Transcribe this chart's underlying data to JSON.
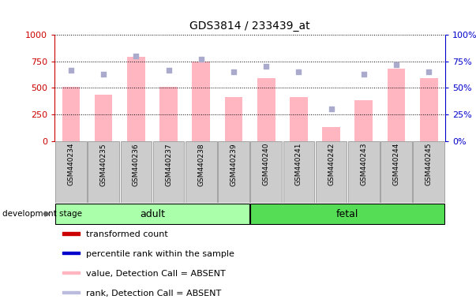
{
  "title": "GDS3814 / 233439_at",
  "samples": [
    "GSM440234",
    "GSM440235",
    "GSM440236",
    "GSM440237",
    "GSM440238",
    "GSM440239",
    "GSM440240",
    "GSM440241",
    "GSM440242",
    "GSM440243",
    "GSM440244",
    "GSM440245"
  ],
  "bar_values": [
    510,
    435,
    790,
    510,
    745,
    415,
    590,
    415,
    130,
    380,
    680,
    590
  ],
  "rank_values": [
    67,
    63,
    80,
    67,
    77,
    65,
    70,
    65,
    30,
    63,
    72,
    65
  ],
  "bar_color": "#FFB6C1",
  "rank_color": "#AAAACC",
  "left_axis_color": "#CC0000",
  "right_axis_color": "#0000CC",
  "ylim_left": [
    0,
    1000
  ],
  "ylim_right": [
    0,
    100
  ],
  "yticks_left": [
    0,
    250,
    500,
    750,
    1000
  ],
  "yticks_right": [
    0,
    25,
    50,
    75,
    100
  ],
  "group_adult_color": "#AAFFAA",
  "group_fetal_color": "#55DD55",
  "sample_box_color": "#CCCCCC",
  "sample_box_edge": "#888888",
  "dev_stage_label": "development stage",
  "legend_items": [
    {
      "label": "transformed count",
      "color": "#CC0000"
    },
    {
      "label": "percentile rank within the sample",
      "color": "#0000CC"
    },
    {
      "label": "value, Detection Call = ABSENT",
      "color": "#FFB6C1"
    },
    {
      "label": "rank, Detection Call = ABSENT",
      "color": "#BBBBDD"
    }
  ],
  "figsize": [
    6.03,
    3.84
  ],
  "dpi": 100
}
